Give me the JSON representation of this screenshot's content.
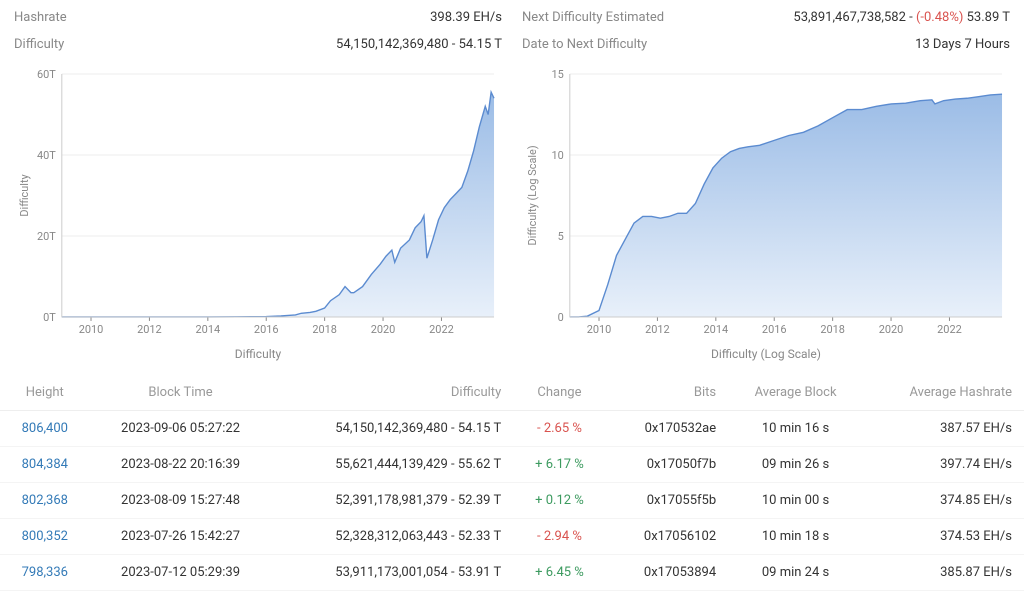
{
  "stats_left": {
    "hashrate_label": "Hashrate",
    "hashrate_value": "398.39 EH/s",
    "difficulty_label": "Difficulty",
    "difficulty_value": "54,150,142,369,480 - 54.15 T"
  },
  "stats_right": {
    "next_diff_label": "Next Difficulty Estimated",
    "next_diff_value_num": "53,891,467,738,582 - ",
    "next_diff_change": "(-0.48%)",
    "next_diff_value_suffix": " 53.89 T",
    "date_next_label": "Date to Next Difficulty",
    "date_next_value": "13 Days 7 Hours"
  },
  "chart_linear": {
    "type": "area",
    "ylabel": "Difficulty",
    "xlabel": "Difficulty",
    "xlim": [
      2009,
      2023.8
    ],
    "ylim": [
      0,
      60
    ],
    "yticks": [
      0,
      20,
      40,
      60
    ],
    "ytick_suffix": "T",
    "xticks": [
      2010,
      2012,
      2014,
      2016,
      2018,
      2020,
      2022
    ],
    "stroke_color": "#5b8bd0",
    "fill_top_color": "#9bbce6",
    "fill_bottom_color": "#e8f0fa",
    "grid_color": "#eeeeee",
    "axis_text_color": "#888888",
    "background_color": "#ffffff",
    "data": [
      [
        2009,
        0
      ],
      [
        2010,
        0
      ],
      [
        2011,
        0
      ],
      [
        2012,
        0
      ],
      [
        2013,
        0
      ],
      [
        2014,
        0
      ],
      [
        2015,
        0.02
      ],
      [
        2015.5,
        0.05
      ],
      [
        2016,
        0.1
      ],
      [
        2016.5,
        0.25
      ],
      [
        2017,
        0.5
      ],
      [
        2017.2,
        0.9
      ],
      [
        2017.5,
        1.1
      ],
      [
        2017.7,
        1.4
      ],
      [
        2018,
        2.2
      ],
      [
        2018.2,
        4.0
      ],
      [
        2018.5,
        5.5
      ],
      [
        2018.7,
        7.5
      ],
      [
        2018.9,
        6.0
      ],
      [
        2019,
        6.0
      ],
      [
        2019.3,
        7.5
      ],
      [
        2019.6,
        10.5
      ],
      [
        2019.9,
        13.0
      ],
      [
        2020.1,
        15.0
      ],
      [
        2020.3,
        16.5
      ],
      [
        2020.4,
        13.5
      ],
      [
        2020.6,
        17.0
      ],
      [
        2020.9,
        19.0
      ],
      [
        2021.1,
        22.0
      ],
      [
        2021.3,
        23.5
      ],
      [
        2021.4,
        25.0
      ],
      [
        2021.5,
        14.5
      ],
      [
        2021.7,
        19.0
      ],
      [
        2021.9,
        24.0
      ],
      [
        2022.1,
        27.0
      ],
      [
        2022.3,
        29.0
      ],
      [
        2022.5,
        30.5
      ],
      [
        2022.7,
        32.0
      ],
      [
        2022.9,
        36.0
      ],
      [
        2023.1,
        41.0
      ],
      [
        2023.3,
        47.0
      ],
      [
        2023.5,
        52.0
      ],
      [
        2023.6,
        50.0
      ],
      [
        2023.7,
        55.5
      ],
      [
        2023.8,
        54.0
      ]
    ]
  },
  "chart_log": {
    "type": "area",
    "ylabel": "Difficulty (Log Scale)",
    "xlabel": "Difficulty (Log Scale)",
    "xlim": [
      2009,
      2023.8
    ],
    "ylim": [
      0,
      15
    ],
    "yticks": [
      0,
      5,
      10,
      15
    ],
    "xticks": [
      2010,
      2012,
      2014,
      2016,
      2018,
      2020,
      2022
    ],
    "stroke_color": "#5b8bd0",
    "fill_top_color": "#9bbce6",
    "fill_bottom_color": "#e8f0fa",
    "grid_color": "#eeeeee",
    "axis_text_color": "#888888",
    "background_color": "#ffffff",
    "data": [
      [
        2009,
        0
      ],
      [
        2009.3,
        0
      ],
      [
        2009.6,
        0.05
      ],
      [
        2010,
        0.4
      ],
      [
        2010.3,
        2.0
      ],
      [
        2010.6,
        3.8
      ],
      [
        2010.9,
        4.8
      ],
      [
        2011.2,
        5.8
      ],
      [
        2011.5,
        6.2
      ],
      [
        2011.8,
        6.2
      ],
      [
        2012.1,
        6.1
      ],
      [
        2012.4,
        6.2
      ],
      [
        2012.7,
        6.4
      ],
      [
        2013,
        6.4
      ],
      [
        2013.3,
        7.0
      ],
      [
        2013.6,
        8.2
      ],
      [
        2013.9,
        9.2
      ],
      [
        2014.2,
        9.8
      ],
      [
        2014.5,
        10.2
      ],
      [
        2014.8,
        10.4
      ],
      [
        2015.1,
        10.5
      ],
      [
        2015.5,
        10.6
      ],
      [
        2016,
        10.9
      ],
      [
        2016.5,
        11.2
      ],
      [
        2017,
        11.4
      ],
      [
        2017.5,
        11.8
      ],
      [
        2018,
        12.3
      ],
      [
        2018.5,
        12.8
      ],
      [
        2019,
        12.8
      ],
      [
        2019.5,
        13.0
      ],
      [
        2020,
        13.15
      ],
      [
        2020.5,
        13.2
      ],
      [
        2021,
        13.35
      ],
      [
        2021.4,
        13.4
      ],
      [
        2021.5,
        13.15
      ],
      [
        2021.8,
        13.35
      ],
      [
        2022.2,
        13.45
      ],
      [
        2022.6,
        13.5
      ],
      [
        2023,
        13.6
      ],
      [
        2023.4,
        13.7
      ],
      [
        2023.8,
        13.75
      ]
    ]
  },
  "table": {
    "columns": [
      {
        "label": "Height",
        "align": "center"
      },
      {
        "label": "Block Time",
        "align": "center"
      },
      {
        "label": "Difficulty",
        "align": "right"
      },
      {
        "label": "Change",
        "align": "center"
      },
      {
        "label": "Bits",
        "align": "right"
      },
      {
        "label": "Average Block",
        "align": "center"
      },
      {
        "label": "Average Hashrate",
        "align": "right"
      }
    ],
    "rows": [
      {
        "height": "806,400",
        "time": "2023-09-06 05:27:22",
        "difficulty": "54,150,142,369,480 - 54.15 T",
        "change": "- 2.65 %",
        "change_sign": "neg",
        "bits": "0x170532ae",
        "avg_block": "10 min 16 s",
        "avg_hash": "387.57 EH/s"
      },
      {
        "height": "804,384",
        "time": "2023-08-22 20:16:39",
        "difficulty": "55,621,444,139,429 - 55.62 T",
        "change": "+ 6.17 %",
        "change_sign": "pos",
        "bits": "0x17050f7b",
        "avg_block": "09 min 26 s",
        "avg_hash": "397.74 EH/s"
      },
      {
        "height": "802,368",
        "time": "2023-08-09 15:27:48",
        "difficulty": "52,391,178,981,379 - 52.39 T",
        "change": "+ 0.12 %",
        "change_sign": "pos",
        "bits": "0x17055f5b",
        "avg_block": "10 min 00 s",
        "avg_hash": "374.85 EH/s"
      },
      {
        "height": "800,352",
        "time": "2023-07-26 15:42:27",
        "difficulty": "52,328,312,063,443 - 52.33 T",
        "change": "- 2.94 %",
        "change_sign": "neg",
        "bits": "0x17056102",
        "avg_block": "10 min 18 s",
        "avg_hash": "374.53 EH/s"
      },
      {
        "height": "798,336",
        "time": "2023-07-12 05:29:39",
        "difficulty": "53,911,173,001,054 - 53.91 T",
        "change": "+ 6.45 %",
        "change_sign": "pos",
        "bits": "0x17053894",
        "avg_block": "09 min 24 s",
        "avg_hash": "385.87 EH/s"
      }
    ]
  }
}
